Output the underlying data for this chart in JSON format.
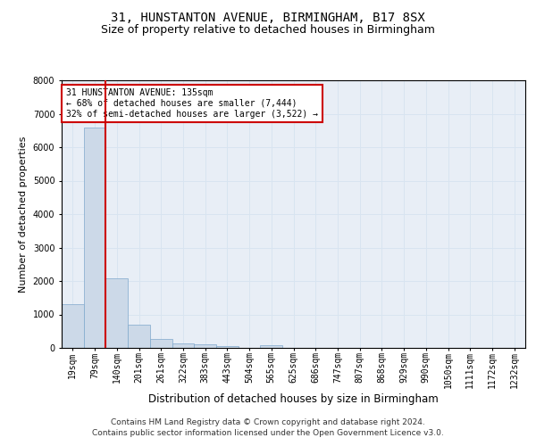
{
  "title1": "31, HUNSTANTON AVENUE, BIRMINGHAM, B17 8SX",
  "title2": "Size of property relative to detached houses in Birmingham",
  "xlabel": "Distribution of detached houses by size in Birmingham",
  "ylabel": "Number of detached properties",
  "footer1": "Contains HM Land Registry data © Crown copyright and database right 2024.",
  "footer2": "Contains public sector information licensed under the Open Government Licence v3.0.",
  "bin_labels": [
    "19sqm",
    "79sqm",
    "140sqm",
    "201sqm",
    "261sqm",
    "322sqm",
    "383sqm",
    "443sqm",
    "504sqm",
    "565sqm",
    "625sqm",
    "686sqm",
    "747sqm",
    "807sqm",
    "868sqm",
    "929sqm",
    "990sqm",
    "1050sqm",
    "1111sqm",
    "1172sqm",
    "1232sqm"
  ],
  "bar_heights": [
    1300,
    6600,
    2080,
    700,
    280,
    145,
    95,
    55,
    0,
    90,
    0,
    0,
    0,
    0,
    0,
    0,
    0,
    0,
    0,
    0,
    0
  ],
  "bar_color": "#ccd9e8",
  "bar_edge_color": "#7fa8cc",
  "vline_x": 1.5,
  "vline_color": "#cc0000",
  "annotation_text": "31 HUNSTANTON AVENUE: 135sqm\n← 68% of detached houses are smaller (7,444)\n32% of semi-detached houses are larger (3,522) →",
  "annotation_box_color": "#ffffff",
  "annotation_box_edge_color": "#cc0000",
  "ylim": [
    0,
    8000
  ],
  "yticks": [
    0,
    1000,
    2000,
    3000,
    4000,
    5000,
    6000,
    7000,
    8000
  ],
  "grid_color": "#d8e4f0",
  "bg_color": "#e8eef6",
  "title1_fontsize": 10,
  "title2_fontsize": 9,
  "xlabel_fontsize": 8.5,
  "ylabel_fontsize": 8,
  "tick_fontsize": 7,
  "annot_fontsize": 7,
  "footer_fontsize": 6.5
}
